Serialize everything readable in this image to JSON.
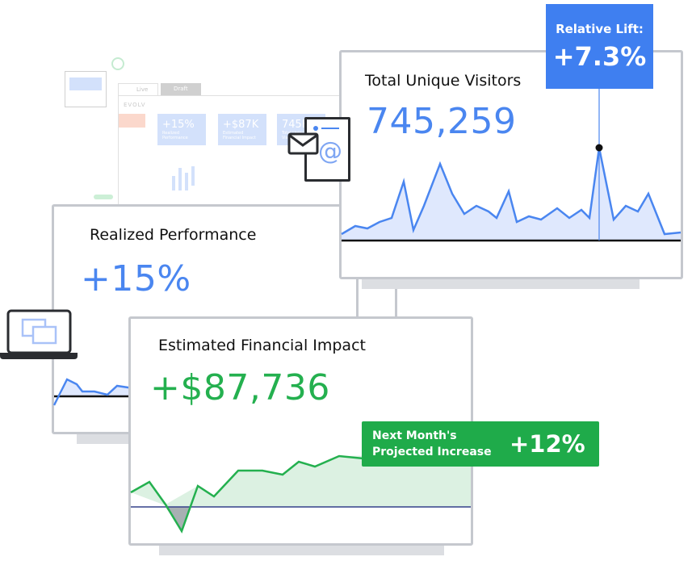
{
  "background_dashboard": {
    "tabs": [
      {
        "label": "Live"
      },
      {
        "label": "Draft"
      }
    ],
    "brand": "EVOLV",
    "tiles": [
      {
        "value": "+15%",
        "label": "Realized Performance"
      },
      {
        "value": "+$87K",
        "label": "Estimated Financial Impact"
      },
      {
        "value": "745K",
        "label": "Total Unique Visitors"
      }
    ]
  },
  "visitors": {
    "title": "Total Unique Visitors",
    "value": "745,259"
  },
  "lift": {
    "label": "Relative Lift:",
    "value": "+7.3%"
  },
  "realized": {
    "title": "Realized Performance",
    "value": "+15%"
  },
  "financial": {
    "title": "Estimated Financial Impact",
    "value": "+$87,736"
  },
  "projection": {
    "label_line1": "Next Month's",
    "label_line2": "Projected Increase",
    "value": "+12%"
  },
  "colors": {
    "blue": "#4a86f0",
    "green": "#24b04f",
    "lift_bg": "#3f7ff0",
    "badge_bg": "#1fab4a"
  }
}
